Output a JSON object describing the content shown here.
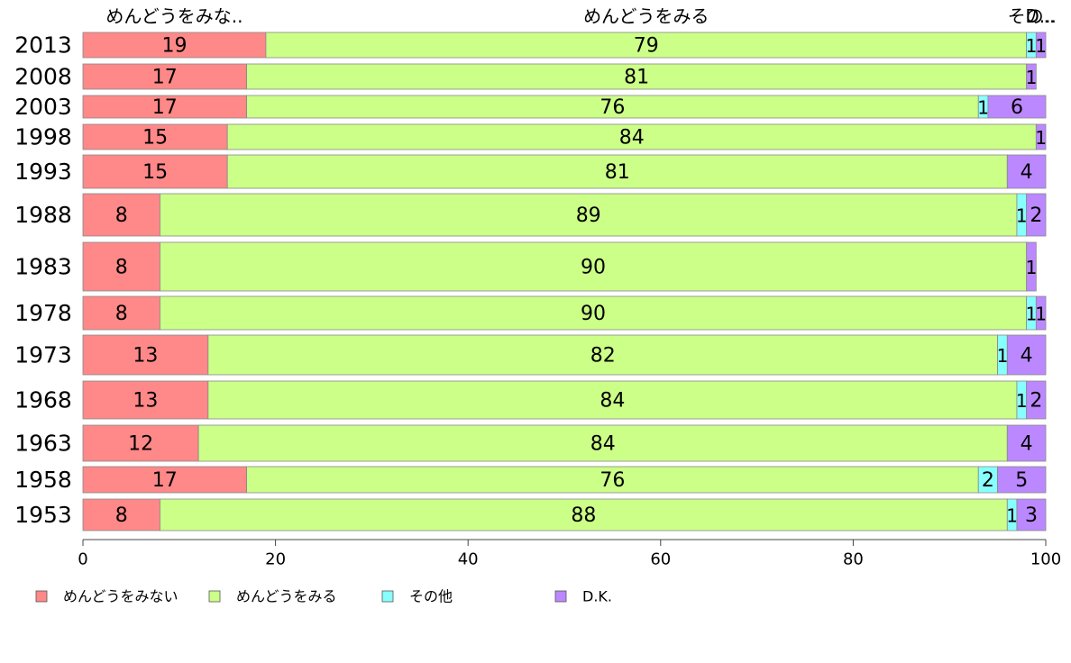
{
  "chart_data": {
    "type": "bar",
    "orientation": "horizontal",
    "stacked": true,
    "categories": [
      "2013",
      "2008",
      "2003",
      "1998",
      "1993",
      "1988",
      "1983",
      "1978",
      "1973",
      "1968",
      "1963",
      "1958",
      "1953"
    ],
    "series": [
      {
        "name": "めんどうをみない",
        "color": "#ff8888",
        "values": [
          19,
          17,
          17,
          15,
          15,
          8,
          8,
          8,
          13,
          13,
          12,
          17,
          8
        ],
        "labels": [
          "19",
          "17",
          "17",
          "15",
          "15",
          "8",
          "8",
          "8",
          "13",
          "13",
          "12",
          "17",
          "8"
        ]
      },
      {
        "name": "めんどうをみる",
        "color": "#ccff88",
        "values": [
          79,
          81,
          76,
          84,
          81,
          89,
          90,
          90,
          82,
          84,
          84,
          76,
          88
        ],
        "labels": [
          "79",
          "81",
          "76",
          "84",
          "81",
          "89",
          "90",
          "90",
          "82",
          "84",
          "84",
          "76",
          "88"
        ]
      },
      {
        "name": "その他",
        "color": "#88ffff",
        "values": [
          1,
          0,
          1,
          0,
          0,
          1,
          0,
          1,
          1,
          1,
          0,
          2,
          1
        ],
        "labels": [
          "1",
          "",
          "1",
          "",
          "",
          "1",
          "",
          "1",
          "1",
          "1",
          "",
          "2",
          "1"
        ]
      },
      {
        "name": "D.K.",
        "color": "#bb88ff",
        "values": [
          1,
          1,
          6,
          1,
          4,
          2,
          1,
          1,
          4,
          2,
          4,
          5,
          3
        ],
        "labels": [
          "1",
          "1",
          "6",
          "1",
          "4",
          "2",
          "1",
          "1",
          "4",
          "2",
          "4",
          "5",
          "3"
        ]
      }
    ],
    "top_headers": [
      "めんどうをみな..",
      "めんどうをみる",
      "その..",
      "D..."
    ],
    "xlim": [
      0,
      100
    ],
    "xticks": [
      0,
      20,
      40,
      60,
      80,
      100
    ],
    "grid": false,
    "legend_position": "bottom-left"
  }
}
